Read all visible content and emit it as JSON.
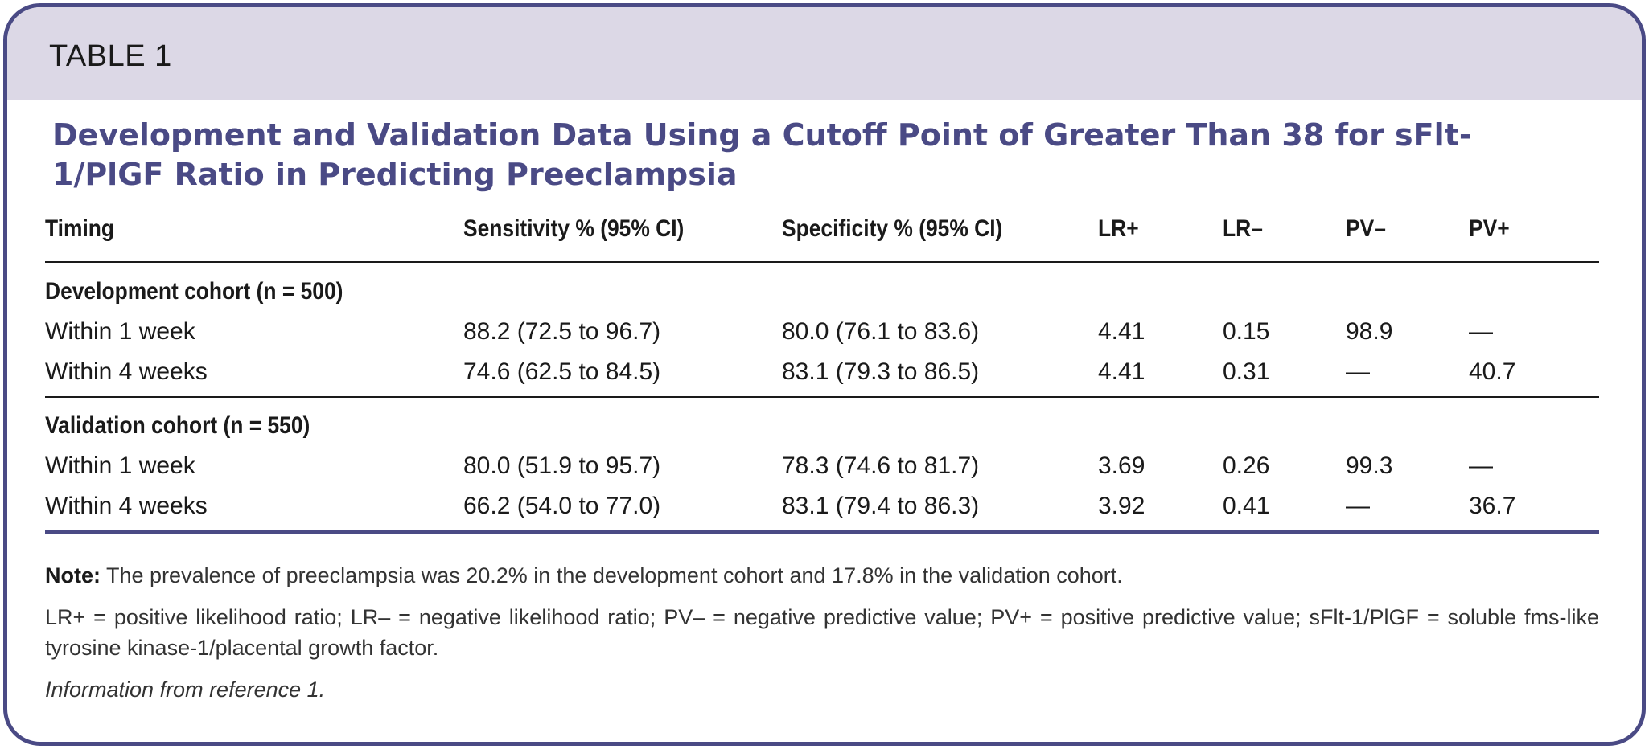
{
  "table_label": "TABLE 1",
  "title": "Development and Validation Data Using a Cutoff Point of Greater Than 38 for sFlt-1/PlGF Ratio in Predicting Preeclampsia",
  "columns": [
    "Timing",
    "Sensitivity % (95% CI)",
    "Specificity % (95% CI)",
    "LR+",
    "LR–",
    "PV–",
    "PV+"
  ],
  "groups": [
    {
      "label": "Development cohort (n = 500)",
      "rows": [
        [
          "Within 1 week",
          "88.2 (72.5 to 96.7)",
          "80.0 (76.1 to 83.6)",
          "4.41",
          "0.15",
          "98.9",
          "—"
        ],
        [
          "Within 4 weeks",
          "74.6 (62.5 to 84.5)",
          "83.1 (79.3 to 86.5)",
          "4.41",
          "0.31",
          "—",
          "40.7"
        ]
      ]
    },
    {
      "label": "Validation cohort (n = 550)",
      "rows": [
        [
          "Within 1 week",
          "80.0 (51.9 to 95.7)",
          "78.3 (74.6 to 81.7)",
          "3.69",
          "0.26",
          "99.3",
          "—"
        ],
        [
          "Within 4 weeks",
          "66.2 (54.0 to 77.0)",
          "83.1 (79.4 to 86.3)",
          "3.92",
          "0.41",
          "—",
          "36.7"
        ]
      ]
    }
  ],
  "note_label": "Note:",
  "note_text": " The prevalence of preeclampsia was 20.2% in the development cohort and 17.8% in the validation cohort.",
  "abbreviations": "LR+ = positive likelihood ratio; LR– = negative likelihood ratio; PV– = negative predictive value; PV+ = positive predictive value; sFlt-1/PlGF = soluble fms-like tyrosine kinase-1/placental growth factor.",
  "source": "Information from reference 1.",
  "colors": {
    "frame": "#4a4a85",
    "header_band": "#dcd8e6",
    "title": "#4a4a85"
  }
}
